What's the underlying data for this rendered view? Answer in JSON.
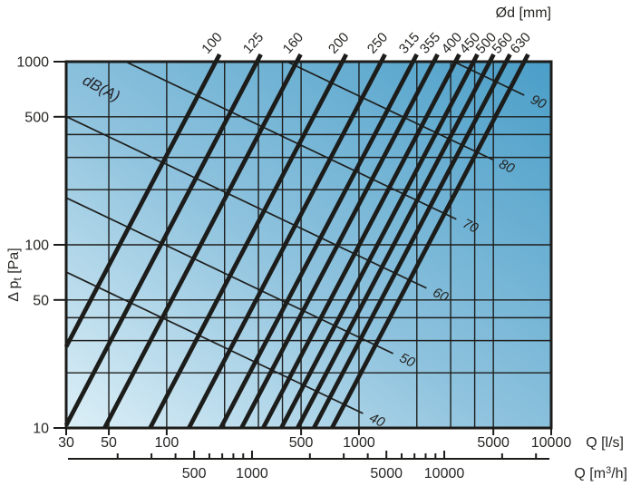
{
  "chart_data": {
    "type": "line",
    "description_labels": {
      "corner_label": "dB(A)"
    },
    "colors": {
      "line": "#1c1c1a",
      "text": "#262624",
      "gradient_bottom_left": "#dceff7",
      "gradient_mid": "#8fc3de",
      "gradient_top_right": "#4a9ec8"
    },
    "top_axis": {
      "label": "Ød [mm]",
      "values": [
        100,
        125,
        160,
        200,
        250,
        315,
        355,
        400,
        450,
        500,
        560,
        630
      ]
    },
    "x_axis": {
      "label": "Q [l/s]",
      "scale": "log",
      "min": 30,
      "max": 10000,
      "ticks": [
        30,
        50,
        100,
        500,
        1000,
        5000,
        10000
      ],
      "gridlines": [
        50,
        100,
        200,
        300,
        400,
        500,
        1000,
        2000,
        3000,
        4000,
        5000
      ]
    },
    "x_axis_secondary": {
      "label_prefix": "Q [m",
      "label_sup": "3",
      "label_suffix": "/h]",
      "factor_from_l_per_s": 3.6,
      "labeled_ticks": [
        500,
        1000,
        5000,
        10000
      ],
      "minor_ticks": [
        200,
        300,
        400,
        600,
        700,
        800,
        900,
        2000,
        3000,
        4000,
        6000,
        7000,
        8000,
        9000,
        20000,
        30000
      ]
    },
    "y_axis": {
      "label_prefix": "Δ p",
      "label_sub": "t",
      "label_suffix": " [Pa]",
      "scale": "log",
      "min": 10,
      "max": 1000,
      "ticks": [
        10,
        50,
        100,
        500,
        1000
      ],
      "gridlines": [
        20,
        30,
        40,
        50,
        100,
        200,
        300,
        400,
        500
      ]
    },
    "diameter_lines": {
      "slope_decades_p_per_decade_q": 2,
      "lines": [
        {
          "d_mm": 100,
          "q_ls_at_1000pa": 180
        },
        {
          "d_mm": 125,
          "q_ls_at_1000pa": 295
        },
        {
          "d_mm": 160,
          "q_ls_at_1000pa": 475
        },
        {
          "d_mm": 200,
          "q_ls_at_1000pa": 820
        },
        {
          "d_mm": 250,
          "q_ls_at_1000pa": 1305
        },
        {
          "d_mm": 315,
          "q_ls_at_1000pa": 1910
        },
        {
          "d_mm": 355,
          "q_ls_at_1000pa": 2450
        },
        {
          "d_mm": 400,
          "q_ls_at_1000pa": 3175
        },
        {
          "d_mm": 450,
          "q_ls_at_1000pa": 3945
        },
        {
          "d_mm": 500,
          "q_ls_at_1000pa": 4795
        },
        {
          "d_mm": 560,
          "q_ls_at_1000pa": 5830
        },
        {
          "d_mm": 630,
          "q_ls_at_1000pa": 7240
        }
      ]
    },
    "noise_lines": {
      "label": "dB(A)",
      "slope_decades_p_per_decade_q": -0.5,
      "lines": [
        {
          "db": 40,
          "q_ls_end": 1050,
          "pa_end": 12
        },
        {
          "db": 50,
          "q_ls_end": 1505,
          "pa_end": 25.5
        },
        {
          "db": 60,
          "q_ls_end": 2245,
          "pa_end": 58
        },
        {
          "db": 70,
          "q_ls_end": 3210,
          "pa_end": 138
        },
        {
          "db": 80,
          "q_ls_end": 4955,
          "pa_end": 292
        },
        {
          "db": 90,
          "q_ls_end": 7240,
          "pa_end": 656
        }
      ]
    }
  }
}
